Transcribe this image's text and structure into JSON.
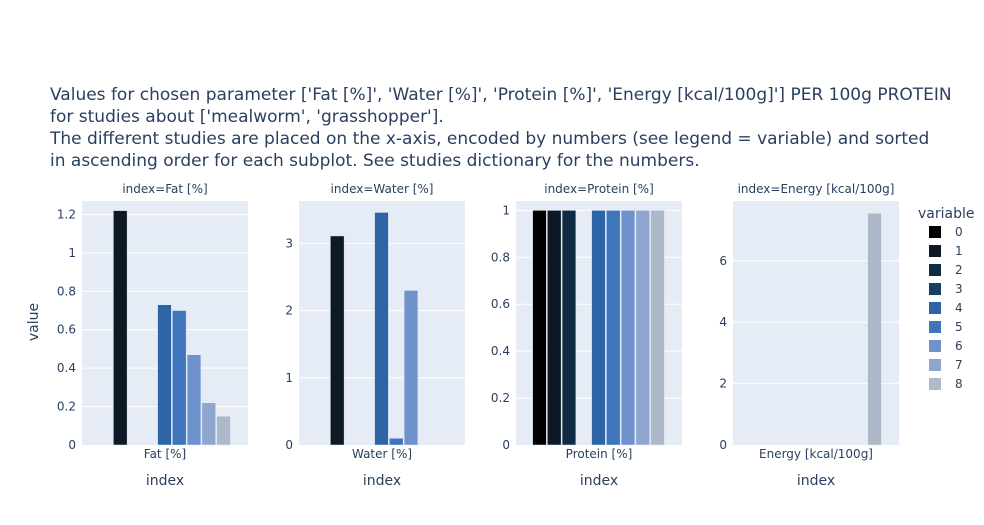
{
  "chart_data": {
    "type": "bar",
    "title_lines": [
      "Values for chosen parameter ['Fat [%]', 'Water [%]', 'Protein [%]', 'Energy [kcal/100g]'] PER 100g PROTEIN",
      "for studies about ['mealworm', 'grasshopper'].",
      "The different studies are placed on the x-axis, encoded by numbers (see legend = variable) and sorted",
      "in ascending order for each subplot. See studies dictionary for the numbers."
    ],
    "ylabel": "value",
    "legend": {
      "title": "variable",
      "entries": [
        "0",
        "1",
        "2",
        "3",
        "4",
        "5",
        "6",
        "7",
        "8"
      ],
      "colors": [
        "#000000",
        "#0d1a26",
        "#102a43",
        "#173f66",
        "#2e64a6",
        "#3f75ba",
        "#6e92cc",
        "#8fa6cf",
        "#adb8c9"
      ]
    },
    "subplots": [
      {
        "subtitle": "index=Fat [%]",
        "category": "Fat [%]",
        "xlabel": "index",
        "ylim": [
          0,
          1.27
        ],
        "yticks": [
          0,
          0.2,
          0.4,
          0.6,
          0.8,
          1,
          1.2
        ],
        "values": [
          null,
          1.22,
          null,
          null,
          0.73,
          0.7,
          0.47,
          0.22,
          0.15
        ]
      },
      {
        "subtitle": "index=Water [%]",
        "category": "Water [%]",
        "xlabel": "index",
        "ylim": [
          0,
          3.63
        ],
        "yticks": [
          0,
          1,
          2,
          3
        ],
        "values": [
          null,
          3.11,
          null,
          null,
          3.46,
          0.1,
          2.3,
          null,
          null
        ]
      },
      {
        "subtitle": "index=Protein [%]",
        "category": "Protein [%]",
        "xlabel": "index",
        "ylim": [
          0,
          1.04
        ],
        "yticks": [
          0,
          0.2,
          0.4,
          0.6,
          0.8,
          1
        ],
        "values": [
          1,
          1,
          1,
          null,
          1,
          1,
          1,
          1,
          1
        ]
      },
      {
        "subtitle": "index=Energy [kcal/100g]",
        "category": "Energy [kcal/100g]",
        "xlabel": "index",
        "ylim": [
          0,
          7.95
        ],
        "yticks": [
          0,
          2,
          4,
          6
        ],
        "values": [
          null,
          null,
          null,
          null,
          null,
          null,
          null,
          null,
          7.55
        ]
      }
    ]
  }
}
